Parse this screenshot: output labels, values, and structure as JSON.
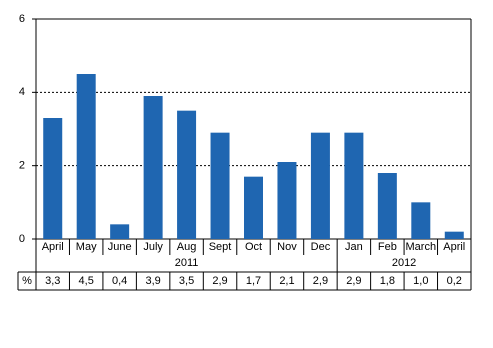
{
  "chart_data": {
    "type": "bar",
    "categories": [
      "April",
      "May",
      "June",
      "July",
      "Aug",
      "Sept",
      "Oct",
      "Nov",
      "Dec",
      "Jan",
      "Feb",
      "March",
      "April"
    ],
    "years": [
      "2011",
      "2012"
    ],
    "values": [
      3.3,
      4.5,
      0.4,
      3.9,
      3.5,
      2.9,
      1.7,
      2.1,
      2.9,
      2.9,
      1.8,
      1.0,
      0.2
    ],
    "value_labels": [
      "3,3",
      "4,5",
      "0,4",
      "3,9",
      "3,5",
      "2,9",
      "1,7",
      "2,1",
      "2,9",
      "2,9",
      "1,8",
      "1,0",
      "0,2"
    ],
    "table_label": "%",
    "color": "#1f66b1",
    "ylim": [
      0,
      6
    ],
    "yticks": [
      0,
      2,
      4,
      6
    ],
    "grid": true
  }
}
